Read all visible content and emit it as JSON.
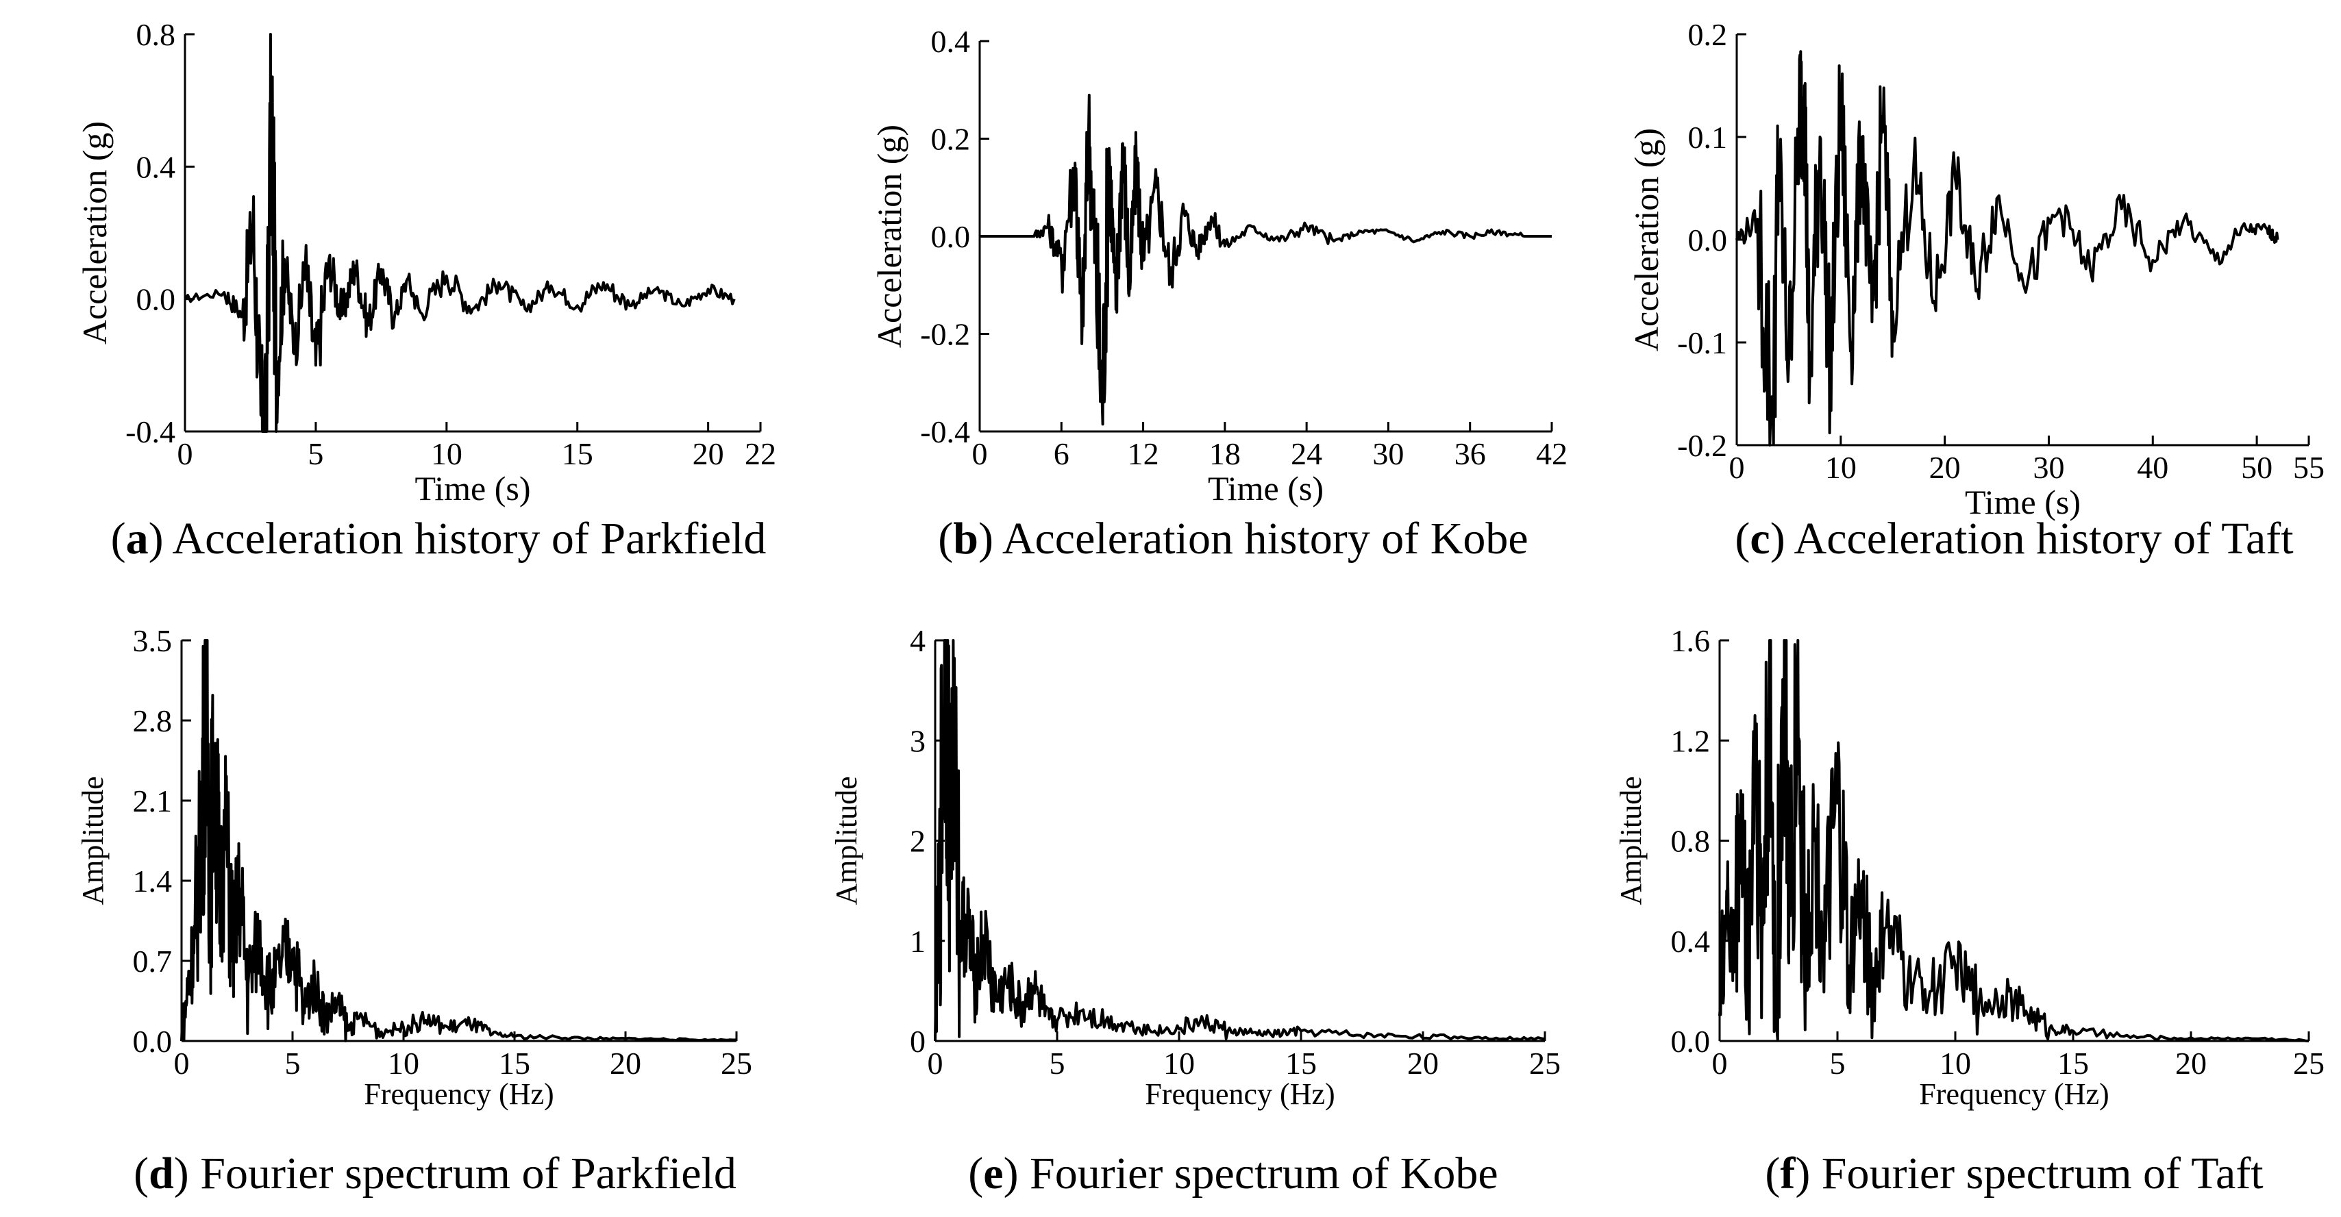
{
  "chart_data": [
    {
      "id": "a",
      "type": "line",
      "caption_letter": "a",
      "caption_text": "Acceleration history of Parkfield",
      "xlabel": "Time (s)",
      "ylabel": "Acceleration (g)",
      "xlim": [
        0,
        22
      ],
      "ylim": [
        -0.4,
        0.8
      ],
      "xticks": [
        0,
        5,
        10,
        15,
        20,
        22
      ],
      "xtick_labels": [
        "0",
        "5",
        "10",
        "15",
        "20",
        "22"
      ],
      "yticks": [
        -0.4,
        0.0,
        0.4,
        0.8
      ],
      "ytick_labels": [
        "-0.4",
        "0.0",
        "0.4",
        "0.8"
      ],
      "series": [
        {
          "name": "Parkfield",
          "x": [
            0,
            1.5,
            2.2,
            2.6,
            2.9,
            3.1,
            3.3,
            3.5,
            3.8,
            4.2,
            4.6,
            5,
            5.5,
            6,
            6.5,
            7,
            7.5,
            8,
            8.5,
            9,
            10,
            11,
            12,
            13,
            14,
            15,
            16,
            17,
            18,
            19,
            20,
            21
          ],
          "y": [
            0,
            0.02,
            -0.05,
            0.23,
            -0.35,
            -0.38,
            0.62,
            -0.25,
            0.12,
            -0.15,
            0.1,
            -0.2,
            0.12,
            -0.05,
            0.1,
            -0.08,
            0.09,
            -0.06,
            0.06,
            -0.04,
            0.07,
            -0.03,
            0.05,
            -0.03,
            0.04,
            -0.02,
            0.05,
            -0.02,
            0.03,
            -0.02,
            0.03,
            0
          ]
        }
      ]
    },
    {
      "id": "b",
      "type": "line",
      "caption_letter": "b",
      "caption_text": "Acceleration history of Kobe",
      "xlabel": "Time (s)",
      "ylabel": "Acceleration (g)",
      "xlim": [
        0,
        42
      ],
      "ylim": [
        -0.4,
        0.4
      ],
      "xticks": [
        0,
        6,
        12,
        18,
        24,
        30,
        36,
        42
      ],
      "xtick_labels": [
        "0",
        "6",
        "12",
        "18",
        "24",
        "30",
        "36",
        "42"
      ],
      "yticks": [
        -0.4,
        -0.2,
        0.0,
        0.2,
        0.4
      ],
      "ytick_labels": [
        "-0.4",
        "-0.2",
        "0.0",
        "0.2",
        "0.4"
      ],
      "series": [
        {
          "name": "Kobe",
          "x": [
            0,
            4,
            5,
            6,
            7,
            7.5,
            8,
            8.5,
            9,
            9.5,
            10,
            10.5,
            11,
            11.5,
            12,
            13,
            14,
            15,
            16,
            17,
            18,
            20,
            22,
            24,
            26,
            28,
            30,
            32,
            34,
            36,
            38,
            40,
            42
          ],
          "y": [
            0,
            0,
            0.02,
            -0.05,
            0.15,
            -0.22,
            0.22,
            -0.05,
            -0.35,
            0.18,
            -0.15,
            0.19,
            -0.1,
            0.15,
            -0.05,
            0.1,
            -0.08,
            0.05,
            -0.03,
            0.04,
            -0.02,
            0.02,
            -0.01,
            0.02,
            -0.01,
            0.01,
            0.01,
            -0.01,
            0.01,
            0,
            0.01,
            0,
            0
          ]
        }
      ]
    },
    {
      "id": "c",
      "type": "line",
      "caption_letter": "c",
      "caption_text": "Acceleration history of Taft",
      "xlabel": "Time (s)",
      "ylabel": "Acceleration (g)",
      "xlim": [
        0,
        55
      ],
      "ylim": [
        -0.2,
        0.2
      ],
      "xticks": [
        0,
        10,
        20,
        30,
        40,
        50,
        55
      ],
      "xtick_labels": [
        "0",
        "10",
        "20",
        "30",
        "40",
        "50",
        "55"
      ],
      "yticks": [
        -0.2,
        -0.1,
        0.0,
        0.1,
        0.2
      ],
      "ytick_labels": [
        "-0.2",
        "-0.1",
        "0.0",
        "0.1",
        "0.2"
      ],
      "series": [
        {
          "name": "Taft",
          "x": [
            0,
            2,
            3.5,
            4,
            5,
            6,
            6.5,
            7,
            8,
            9,
            10,
            11,
            12,
            13,
            14,
            15,
            17,
            19,
            21,
            23,
            25,
            28,
            31,
            34,
            37,
            40,
            43,
            46,
            49,
            51,
            52
          ],
          "y": [
            0,
            0.02,
            -0.18,
            0.08,
            -0.12,
            0.12,
            0.15,
            -0.14,
            0.1,
            -0.13,
            0.13,
            -0.1,
            0.1,
            -0.08,
            0.12,
            -0.07,
            0.07,
            -0.06,
            0.06,
            -0.05,
            0.04,
            -0.04,
            0.03,
            -0.03,
            0.03,
            -0.02,
            0.02,
            -0.02,
            0.01,
            0.01,
            0
          ]
        }
      ]
    },
    {
      "id": "d",
      "type": "line",
      "caption_letter": "d",
      "caption_text": "Fourier spectrum of Parkfield",
      "xlabel": "Frequency (Hz)",
      "ylabel": "Amplitude",
      "xlim": [
        0,
        25
      ],
      "ylim": [
        0,
        3.5
      ],
      "xticks": [
        0,
        5,
        10,
        15,
        20,
        25
      ],
      "xtick_labels": [
        "0",
        "5",
        "10",
        "15",
        "20",
        "25"
      ],
      "yticks": [
        0.0,
        0.7,
        1.4,
        2.1,
        2.8,
        3.5
      ],
      "ytick_labels": [
        "0.0",
        "0.7",
        "1.4",
        "2.1",
        "2.8",
        "3.5"
      ],
      "series": [
        {
          "name": "Parkfield",
          "x": [
            0,
            0.3,
            0.6,
            0.9,
            1.1,
            1.3,
            1.5,
            1.7,
            2.0,
            2.3,
            2.6,
            3.0,
            3.5,
            4.0,
            4.5,
            5.0,
            5.5,
            6.0,
            6.5,
            7.0,
            7.5,
            8.0,
            9.0,
            10.0,
            11.0,
            12.0,
            13.0,
            14.0,
            15.0,
            17.0,
            19.0,
            21.0,
            23.0,
            25.0
          ],
          "y": [
            0,
            0.5,
            0.9,
            1.9,
            3.0,
            1.5,
            2.6,
            1.2,
            1.8,
            0.8,
            1.3,
            0.5,
            0.9,
            0.4,
            0.7,
            0.8,
            0.3,
            0.5,
            0.2,
            0.35,
            0.1,
            0.2,
            0.08,
            0.12,
            0.18,
            0.12,
            0.15,
            0.06,
            0.04,
            0.03,
            0.02,
            0.02,
            0.01,
            0.01
          ]
        }
      ]
    },
    {
      "id": "e",
      "type": "line",
      "caption_letter": "e",
      "caption_text": "Fourier spectrum of Kobe",
      "xlabel": "Frequency (Hz)",
      "ylabel": "Amplitude",
      "xlim": [
        0,
        25
      ],
      "ylim": [
        0,
        4
      ],
      "xticks": [
        0,
        5,
        10,
        15,
        20,
        25
      ],
      "xtick_labels": [
        "0",
        "5",
        "10",
        "15",
        "20",
        "25"
      ],
      "yticks": [
        0,
        1,
        2,
        3,
        4
      ],
      "ytick_labels": [
        "0",
        "1",
        "2",
        "3",
        "4"
      ],
      "series": [
        {
          "name": "Kobe",
          "x": [
            0,
            0.2,
            0.4,
            0.6,
            0.8,
            1.0,
            1.3,
            1.6,
            2.0,
            2.5,
            3.0,
            3.5,
            4.0,
            4.5,
            5.0,
            6.0,
            7.0,
            8.0,
            9.0,
            10.0,
            11.0,
            12.0,
            13.0,
            14.0,
            15.0,
            17.0,
            19.0,
            21.0,
            23.0,
            25.0
          ],
          "y": [
            0,
            1.8,
            3.85,
            2.2,
            3.2,
            1.1,
            1.2,
            0.6,
            1.0,
            0.4,
            0.6,
            0.3,
            0.55,
            0.25,
            0.2,
            0.3,
            0.2,
            0.15,
            0.1,
            0.12,
            0.2,
            0.1,
            0.08,
            0.07,
            0.1,
            0.06,
            0.05,
            0.04,
            0.03,
            0.02
          ]
        }
      ]
    },
    {
      "id": "f",
      "type": "line",
      "caption_letter": "f",
      "caption_text": "Fourier spectrum of Taft",
      "xlabel": "Frequency  (Hz)",
      "ylabel": "Amplitude",
      "xlim": [
        0,
        25
      ],
      "ylim": [
        0,
        1.6
      ],
      "xticks": [
        0,
        5,
        10,
        15,
        20,
        25
      ],
      "xtick_labels": [
        "0",
        "5",
        "10",
        "15",
        "20",
        "25"
      ],
      "yticks": [
        0.0,
        0.4,
        0.8,
        1.2,
        1.6
      ],
      "ytick_labels": [
        "0.0",
        "0.4",
        "0.8",
        "1.2",
        "1.6"
      ],
      "series": [
        {
          "name": "Taft",
          "x": [
            0,
            0.3,
            0.6,
            0.9,
            1.2,
            1.5,
            1.8,
            2.1,
            2.4,
            2.7,
            3.0,
            3.3,
            3.6,
            4.0,
            4.5,
            5.0,
            5.5,
            6.0,
            6.5,
            7.0,
            8.0,
            9.0,
            10.0,
            11.0,
            12.0,
            13.0,
            14.0,
            15.0,
            17.0,
            19.0,
            21.0,
            23.0,
            25.0
          ],
          "y": [
            0.1,
            0.6,
            0.3,
            1.0,
            0.2,
            1.3,
            0.4,
            1.38,
            0.1,
            1.42,
            0.5,
            1.43,
            0.3,
            0.8,
            0.4,
            0.95,
            0.3,
            0.6,
            0.2,
            0.45,
            0.25,
            0.2,
            0.3,
            0.15,
            0.18,
            0.12,
            0.05,
            0.04,
            0.02,
            0.01,
            0.01,
            0.01,
            0.0
          ]
        }
      ]
    }
  ]
}
